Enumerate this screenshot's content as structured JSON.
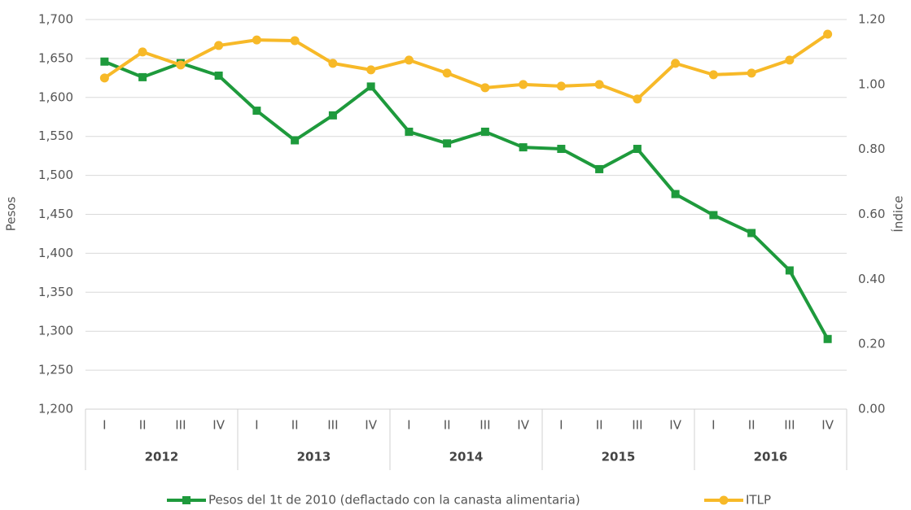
{
  "chart_data": {
    "type": "line",
    "categories": [
      "I",
      "II",
      "III",
      "IV",
      "I",
      "II",
      "III",
      "IV",
      "I",
      "II",
      "III",
      "IV",
      "I",
      "II",
      "III",
      "IV",
      "I",
      "II",
      "III",
      "IV"
    ],
    "x_groups": [
      "2012",
      "2013",
      "2014",
      "2015",
      "2016"
    ],
    "ylabel": "Pesos",
    "y2label": "Índice",
    "ylim": [
      1200,
      1700
    ],
    "yticks": [
      {
        "value": 1200,
        "label": "1,200"
      },
      {
        "value": 1250,
        "label": "1,250"
      },
      {
        "value": 1300,
        "label": "1,300"
      },
      {
        "value": 1350,
        "label": "1,350"
      },
      {
        "value": 1400,
        "label": "1,400"
      },
      {
        "value": 1450,
        "label": "1,450"
      },
      {
        "value": 1500,
        "label": "1,500"
      },
      {
        "value": 1550,
        "label": "1,550"
      },
      {
        "value": 1600,
        "label": "1,600"
      },
      {
        "value": 1650,
        "label": "1,650"
      },
      {
        "value": 1700,
        "label": "1,700"
      }
    ],
    "y2lim": [
      0,
      1.2
    ],
    "y2ticks": [
      {
        "value": 0,
        "label": "0.00"
      },
      {
        "value": 0.2,
        "label": "0.20"
      },
      {
        "value": 0.4,
        "label": "0.40"
      },
      {
        "value": 0.6,
        "label": "0.60"
      },
      {
        "value": 0.8,
        "label": "0.80"
      },
      {
        "value": 1,
        "label": "1.00"
      },
      {
        "value": 1.2,
        "label": "1.20"
      }
    ],
    "grid": true,
    "legend": "bottom",
    "series": [
      {
        "name": "Pesos del 1t de 2010 (deflactado con la canasta alimentaria)",
        "color": "#1e9a3c",
        "marker": "square",
        "values": [
          1646,
          1626,
          1644,
          1628,
          1583,
          1545,
          1577,
          1614,
          1556,
          1541,
          1556,
          1536,
          1534,
          1508,
          1534,
          1476,
          1449,
          1426,
          1378,
          1290
        ]
      },
      {
        "name": "ITLP",
        "color": "#f7b928",
        "marker": "circle",
        "axis": "y2",
        "values": [
          1.02,
          1.1,
          1.06,
          1.12,
          1.137,
          1.135,
          1.065,
          1.045,
          1.075,
          1.035,
          0.99,
          1.0,
          0.995,
          1.0,
          0.955,
          1.065,
          1.03,
          1.035,
          1.075,
          1.155
        ]
      }
    ]
  }
}
